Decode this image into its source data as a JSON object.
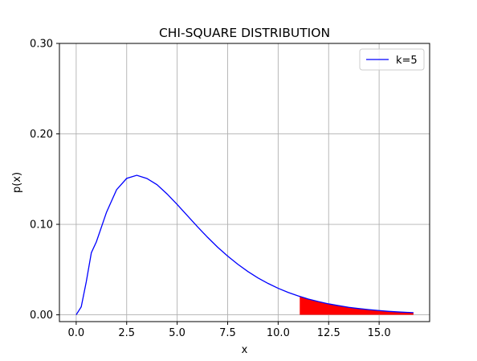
{
  "chart_data": {
    "type": "line",
    "title": "CHI-SQUARE DISTRIBUTION",
    "xlabel": "x",
    "ylabel": "p(x)",
    "xlim": [
      -0.83,
      17.5
    ],
    "ylim": [
      -0.0075,
      0.3
    ],
    "x_ticks": [
      0.0,
      2.5,
      5.0,
      7.5,
      10.0,
      12.5,
      15.0
    ],
    "x_tick_labels": [
      "0.0",
      "2.5",
      "5.0",
      "7.5",
      "10.0",
      "12.5",
      "15.0"
    ],
    "y_ticks": [
      0.0,
      0.1,
      0.2,
      0.3
    ],
    "y_tick_labels": [
      "0.00",
      "0.10",
      "0.20",
      "0.30"
    ],
    "grid": true,
    "legend_position": "top-right",
    "series": [
      {
        "name": "k=5",
        "color": "#0000ff",
        "x": [
          0.0,
          0.25,
          0.5,
          0.75,
          1.0,
          1.5,
          2.0,
          2.5,
          3.0,
          3.5,
          4.0,
          4.5,
          5.0,
          5.5,
          6.0,
          6.5,
          7.0,
          7.5,
          8.0,
          8.5,
          9.0,
          9.5,
          10.0,
          10.5,
          11.0,
          11.5,
          12.0,
          12.5,
          13.0,
          13.5,
          14.0,
          14.5,
          15.0,
          15.5,
          16.0,
          16.5,
          16.7
        ],
        "y": [
          0.0,
          0.0088,
          0.0366,
          0.0686,
          0.0807,
          0.1133,
          0.1383,
          0.1508,
          0.1542,
          0.1507,
          0.1439,
          0.1336,
          0.122,
          0.1098,
          0.0975,
          0.0858,
          0.0748,
          0.0649,
          0.0559,
          0.0479,
          0.0408,
          0.0347,
          0.0293,
          0.0247,
          0.0208,
          0.0174,
          0.0146,
          0.0121,
          0.0101,
          0.0083,
          0.0069,
          0.0057,
          0.0047,
          0.0038,
          0.0031,
          0.0026,
          0.0024
        ]
      }
    ],
    "shaded_region": {
      "x_from": 11.07,
      "x_to": 16.7,
      "color": "#ff0000"
    }
  }
}
